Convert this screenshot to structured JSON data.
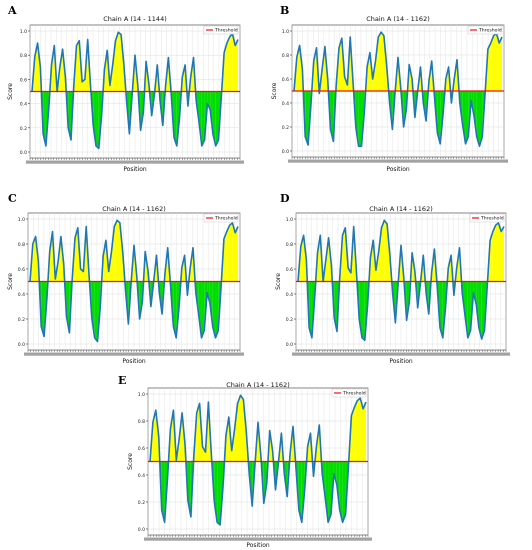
{
  "chart_data": [
    {
      "panel_letter": "A",
      "type": "area",
      "title": "Chain A (14 - 1144)",
      "xlabel": "Position",
      "ylabel": "Score",
      "ylim": [
        0,
        1.0
      ],
      "yticks": [
        "0.0",
        "0.2",
        "0.4",
        "0.6",
        "0.8",
        "1.0"
      ],
      "threshold": 0.5,
      "legend": {
        "label": "Threshold",
        "placement": "top-right"
      },
      "grid": true,
      "x_range": [
        14,
        1144
      ],
      "colors": {
        "line": "#1f77b4",
        "above": "#ffff00",
        "below": "#00dd00",
        "threshold": "#ee1111"
      },
      "values": [
        0.5,
        0.79,
        0.9,
        0.7,
        0.15,
        0.05,
        0.35,
        0.72,
        0.88,
        0.5,
        0.7,
        0.85,
        0.62,
        0.2,
        0.1,
        0.55,
        0.88,
        0.92,
        0.58,
        0.6,
        0.93,
        0.55,
        0.22,
        0.05,
        0.03,
        0.3,
        0.68,
        0.84,
        0.55,
        0.72,
        0.92,
        0.99,
        0.97,
        0.72,
        0.42,
        0.15,
        0.48,
        0.8,
        0.55,
        0.18,
        0.33,
        0.75,
        0.56,
        0.3,
        0.48,
        0.72,
        0.42,
        0.22,
        0.55,
        0.78,
        0.48,
        0.12,
        0.05,
        0.28,
        0.62,
        0.72,
        0.38,
        0.62,
        0.78,
        0.42,
        0.25,
        0.05,
        0.1,
        0.4,
        0.35,
        0.15,
        0.05,
        0.1,
        0.45,
        0.82,
        0.9,
        0.95,
        0.98,
        0.88,
        0.93
      ]
    },
    {
      "panel_letter": "B",
      "type": "area",
      "title": "Chain A (14 - 1162)",
      "xlabel": "Position",
      "ylabel": "Score",
      "ylim": [
        0,
        1.0
      ],
      "yticks": [
        "0.0",
        "0.2",
        "0.4",
        "0.6",
        "0.8",
        "1.0"
      ],
      "threshold": 0.5,
      "legend": {
        "label": "Threshold",
        "placement": "top-right"
      },
      "grid": true,
      "x_range": [
        14,
        1162
      ],
      "colors": {
        "line": "#1f77b4",
        "above": "#ffff00",
        "below": "#00dd00",
        "threshold": "#ee1111"
      },
      "values": [
        0.5,
        0.78,
        0.88,
        0.68,
        0.12,
        0.05,
        0.38,
        0.75,
        0.86,
        0.48,
        0.68,
        0.87,
        0.6,
        0.18,
        0.08,
        0.55,
        0.86,
        0.94,
        0.62,
        0.55,
        0.95,
        0.58,
        0.2,
        0.04,
        0.04,
        0.32,
        0.7,
        0.82,
        0.6,
        0.75,
        0.95,
        0.99,
        0.96,
        0.7,
        0.4,
        0.18,
        0.5,
        0.78,
        0.52,
        0.2,
        0.35,
        0.72,
        0.6,
        0.28,
        0.5,
        0.7,
        0.4,
        0.25,
        0.58,
        0.75,
        0.45,
        0.15,
        0.06,
        0.3,
        0.6,
        0.7,
        0.4,
        0.6,
        0.76,
        0.4,
        0.22,
        0.06,
        0.12,
        0.42,
        0.3,
        0.12,
        0.04,
        0.12,
        0.48,
        0.85,
        0.9,
        0.96,
        0.98,
        0.9,
        0.95
      ]
    },
    {
      "panel_letter": "C",
      "type": "area",
      "title": "Chain A (14 - 1162)",
      "xlabel": "Position",
      "ylabel": "Score",
      "ylim": [
        0,
        1.0
      ],
      "yticks": [
        "0.0",
        "0.2",
        "0.4",
        "0.6",
        "0.8",
        "1.0"
      ],
      "threshold": 0.5,
      "legend": {
        "label": "Threshold",
        "placement": "top-right"
      },
      "grid": true,
      "x_range": [
        14,
        1162
      ],
      "colors": {
        "line": "#1f77b4",
        "above": "#ffff00",
        "below": "#00dd00",
        "threshold": "#ee1111"
      },
      "values": [
        0.5,
        0.8,
        0.86,
        0.66,
        0.14,
        0.06,
        0.36,
        0.74,
        0.9,
        0.52,
        0.66,
        0.86,
        0.64,
        0.22,
        0.09,
        0.52,
        0.85,
        0.93,
        0.6,
        0.58,
        0.94,
        0.56,
        0.21,
        0.05,
        0.02,
        0.3,
        0.7,
        0.83,
        0.58,
        0.74,
        0.94,
        0.99,
        0.97,
        0.73,
        0.42,
        0.16,
        0.5,
        0.79,
        0.54,
        0.2,
        0.34,
        0.74,
        0.58,
        0.3,
        0.5,
        0.71,
        0.41,
        0.24,
        0.56,
        0.77,
        0.47,
        0.14,
        0.05,
        0.29,
        0.61,
        0.71,
        0.39,
        0.61,
        0.77,
        0.41,
        0.24,
        0.05,
        0.11,
        0.41,
        0.33,
        0.14,
        0.05,
        0.11,
        0.46,
        0.84,
        0.9,
        0.95,
        0.97,
        0.89,
        0.94
      ]
    },
    {
      "panel_letter": "D",
      "type": "area",
      "title": "Chain A (14 - 1162)",
      "xlabel": "Position",
      "ylabel": "Score",
      "ylim": [
        0,
        1.0
      ],
      "yticks": [
        "0.0",
        "0.2",
        "0.4",
        "0.6",
        "0.8",
        "1.0"
      ],
      "threshold": 0.5,
      "legend": {
        "label": "Threshold",
        "placement": "top-right"
      },
      "grid": true,
      "x_range": [
        14,
        1162
      ],
      "colors": {
        "line": "#1f77b4",
        "above": "#ffff00",
        "below": "#00dd00",
        "threshold": "#ee1111"
      },
      "values": [
        0.5,
        0.78,
        0.87,
        0.67,
        0.13,
        0.05,
        0.37,
        0.73,
        0.87,
        0.5,
        0.67,
        0.85,
        0.63,
        0.21,
        0.1,
        0.54,
        0.87,
        0.93,
        0.61,
        0.57,
        0.94,
        0.57,
        0.2,
        0.05,
        0.03,
        0.31,
        0.69,
        0.83,
        0.59,
        0.74,
        0.93,
        0.99,
        0.96,
        0.71,
        0.41,
        0.17,
        0.49,
        0.79,
        0.53,
        0.19,
        0.34,
        0.73,
        0.58,
        0.29,
        0.49,
        0.71,
        0.41,
        0.24,
        0.57,
        0.76,
        0.46,
        0.13,
        0.05,
        0.29,
        0.61,
        0.71,
        0.39,
        0.61,
        0.77,
        0.41,
        0.23,
        0.05,
        0.11,
        0.41,
        0.32,
        0.13,
        0.04,
        0.11,
        0.47,
        0.83,
        0.9,
        0.95,
        0.97,
        0.9,
        0.94
      ]
    },
    {
      "panel_letter": "E",
      "type": "area",
      "title": "Chain A (14 - 1162)",
      "xlabel": "Position",
      "ylabel": "Score",
      "ylim": [
        0,
        1.0
      ],
      "yticks": [
        "0.0",
        "0.2",
        "0.4",
        "0.6",
        "0.8",
        "1.0"
      ],
      "threshold": 0.5,
      "legend": {
        "label": "Threshold",
        "placement": "top-right"
      },
      "grid": true,
      "x_range": [
        14,
        1162
      ],
      "colors": {
        "line": "#1f77b4",
        "above": "#ffff00",
        "below": "#00dd00",
        "threshold": "#ee1111"
      },
      "values": [
        0.5,
        0.79,
        0.88,
        0.68,
        0.14,
        0.05,
        0.37,
        0.74,
        0.88,
        0.51,
        0.67,
        0.86,
        0.63,
        0.21,
        0.09,
        0.54,
        0.86,
        0.93,
        0.61,
        0.57,
        0.94,
        0.56,
        0.21,
        0.05,
        0.03,
        0.31,
        0.69,
        0.83,
        0.58,
        0.74,
        0.93,
        0.99,
        0.96,
        0.72,
        0.41,
        0.17,
        0.49,
        0.79,
        0.54,
        0.19,
        0.34,
        0.73,
        0.58,
        0.29,
        0.49,
        0.71,
        0.41,
        0.24,
        0.56,
        0.76,
        0.46,
        0.14,
        0.05,
        0.29,
        0.61,
        0.71,
        0.39,
        0.61,
        0.77,
        0.41,
        0.24,
        0.05,
        0.11,
        0.41,
        0.33,
        0.14,
        0.05,
        0.11,
        0.47,
        0.84,
        0.9,
        0.95,
        0.97,
        0.89,
        0.94
      ]
    }
  ]
}
